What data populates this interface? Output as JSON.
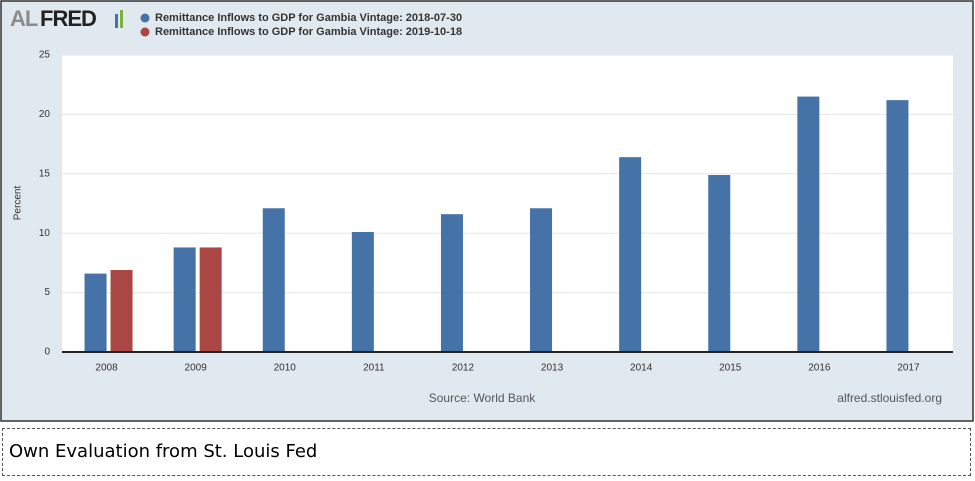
{
  "chart_data": {
    "type": "bar",
    "logo": {
      "prefix": "AL",
      "main": "FRED"
    },
    "y_label": "Percent",
    "source": "Source: World Bank",
    "site": "alfred.stlouisfed.org",
    "categories": [
      "2008",
      "2009",
      "2010",
      "2011",
      "2012",
      "2013",
      "2014",
      "2015",
      "2016",
      "2017"
    ],
    "series": [
      {
        "name": "Remittance Inflows to GDP for Gambia Vintage: 2018-07-30",
        "color": "#4572a7",
        "values": [
          6.6,
          8.8,
          12.1,
          10.1,
          11.6,
          12.1,
          16.4,
          14.9,
          21.5,
          21.2
        ]
      },
      {
        "name": "Remittance Inflows to GDP for Gambia Vintage: 2019-10-18",
        "color": "#aa4643",
        "values": [
          6.9,
          8.8,
          null,
          null,
          null,
          null,
          null,
          null,
          null,
          null
        ]
      }
    ],
    "ylim": [
      0,
      25
    ],
    "yticks": [
      0,
      5,
      10,
      15,
      20,
      25
    ],
    "grid": true
  },
  "caption": "Own Evaluation from St. Louis Fed"
}
